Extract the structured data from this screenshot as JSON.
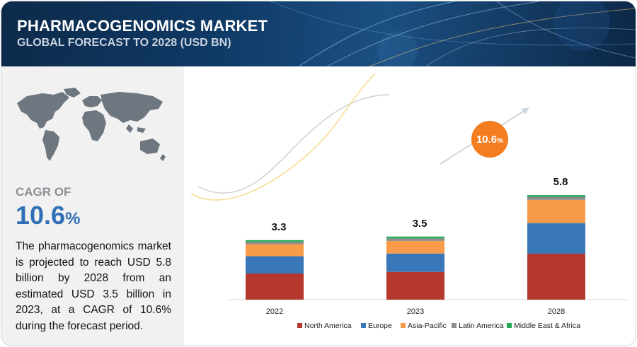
{
  "header": {
    "title": "PHARMACOGENOMICS MARKET",
    "subtitle": "GLOBAL FORECAST TO 2028 (USD BN)"
  },
  "summary": {
    "cagr_label": "CAGR OF",
    "cagr_value": "10.6",
    "cagr_unit": "%",
    "description": "The pharmacogenomics market is projected to reach USD 5.8 billion by 2028 from an estimated USD 3.5 billion in 2023, at a CAGR of 10.6% during the forecast period."
  },
  "colors": {
    "north_america": "#b5382f",
    "europe": "#3a77b8",
    "asia_pacific": "#f89c4a",
    "latin_america": "#8c8c8c",
    "middle_east_africa": "#25a855",
    "badge": "#f47d20",
    "cagr_text": "#2f6fb5"
  },
  "chart_data": {
    "type": "bar",
    "stacked": true,
    "categories": [
      "2022",
      "2023",
      "2028"
    ],
    "totals": [
      "3.3",
      "3.5",
      "5.8"
    ],
    "series": [
      {
        "name": "North America",
        "values": [
          1.45,
          1.54,
          2.55
        ]
      },
      {
        "name": "Europe",
        "values": [
          0.96,
          1.02,
          1.7
        ]
      },
      {
        "name": "Asia-Pacific",
        "values": [
          0.67,
          0.7,
          1.29
        ]
      },
      {
        "name": "Latin America",
        "values": [
          0.13,
          0.14,
          0.16
        ]
      },
      {
        "name": "Middle East & Africa",
        "values": [
          0.09,
          0.1,
          0.1
        ]
      }
    ],
    "cagr_badge": {
      "value": "10.6",
      "unit": "%"
    },
    "legend_position": "bottom",
    "grid": false
  }
}
